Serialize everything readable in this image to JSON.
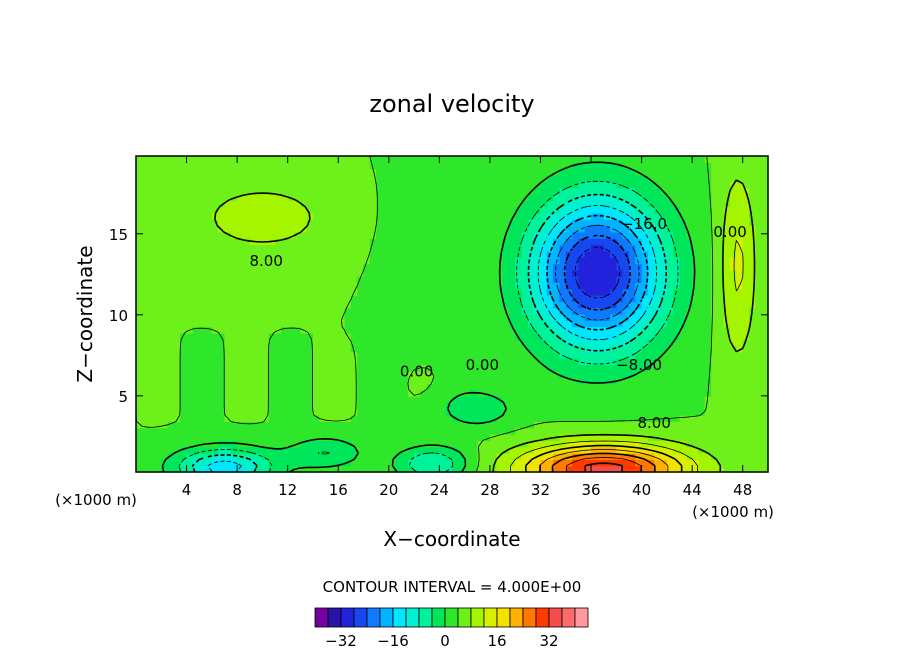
{
  "chart_data": {
    "type": "heatmap",
    "title": "zonal velocity",
    "xlabel": "X−coordinate",
    "ylabel": "Z−coordinate",
    "x_unit": "(×1000 m)",
    "x_unit_right": "(×1000 m)",
    "xlim": [
      0,
      50
    ],
    "ylim": [
      0.3,
      19.8
    ],
    "x_ticks": [
      4,
      8,
      12,
      16,
      20,
      24,
      28,
      32,
      36,
      40,
      44,
      48
    ],
    "y_ticks": [
      5,
      10,
      15
    ],
    "contour_interval_label": "CONTOUR INTERVAL = 4.000E+00",
    "contour_interval": 4,
    "colorbar": {
      "levels": [
        -36,
        -32,
        -28,
        -24,
        -20,
        -16,
        -12,
        -8,
        -4,
        0,
        4,
        8,
        12,
        16,
        20,
        24,
        28,
        32,
        36
      ],
      "tick_labels": [
        "−32",
        "−16",
        "0",
        "16",
        "32"
      ],
      "tick_values": [
        -32,
        -16,
        0,
        16,
        32
      ],
      "colors": [
        "#7700a0",
        "#2a13a8",
        "#2222dd",
        "#1747f0",
        "#107aff",
        "#00b4ff",
        "#00e6ff",
        "#00f0d2",
        "#00f29a",
        "#00e65a",
        "#2ee62a",
        "#6ef01a",
        "#a6f500",
        "#d8f000",
        "#f5e000",
        "#ffb000",
        "#ff7800",
        "#ff3a00",
        "#f54c4c",
        "#ff6a6a",
        "#ff9aa0"
      ]
    },
    "contour_labels": [
      {
        "text": "8.00",
        "x": 10.3,
        "y": 13.0,
        "value": 8
      },
      {
        "text": "−16.0",
        "x": 40.2,
        "y": 15.3,
        "value": -16
      },
      {
        "text": "0.00",
        "x": 47.0,
        "y": 14.8,
        "value": 0
      },
      {
        "text": "0.00",
        "x": 22.2,
        "y": 6.2,
        "value": 0
      },
      {
        "text": "0.00",
        "x": 27.4,
        "y": 6.6,
        "value": 0
      },
      {
        "text": "−8.00",
        "x": 39.8,
        "y": 6.6,
        "value": -8
      },
      {
        "text": "8.00",
        "x": 41.0,
        "y": 3.0,
        "value": 8
      }
    ],
    "field_notes": "approximate reconstruction of the contour field"
  }
}
